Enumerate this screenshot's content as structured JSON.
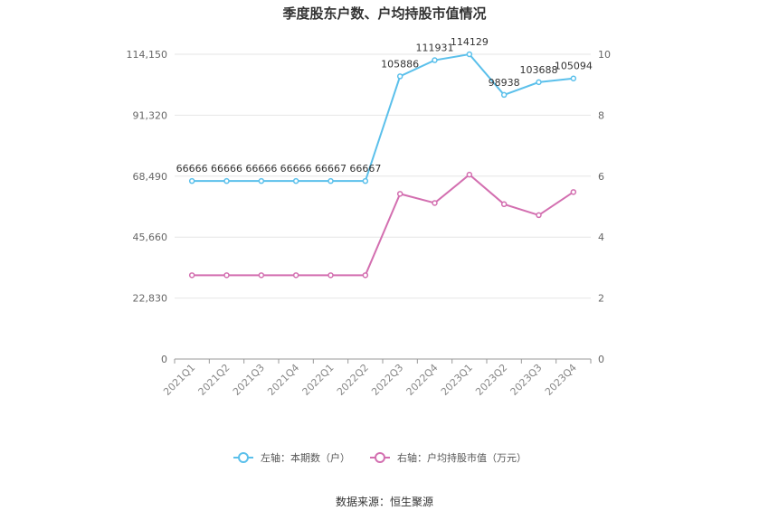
{
  "chart_data": {
    "type": "line",
    "title": "季度股东户数、户均持股市值情况",
    "categories": [
      "2021Q1",
      "2021Q2",
      "2021Q3",
      "2021Q4",
      "2022Q1",
      "2022Q2",
      "2022Q3",
      "2022Q4",
      "2023Q1",
      "2023Q2",
      "2023Q3",
      "2023Q4"
    ],
    "left_axis": {
      "ticks": [
        0,
        22830,
        45660,
        68490,
        91320,
        114150
      ],
      "tick_labels": [
        "0",
        "22,830",
        "45,660",
        "68,490",
        "91,320",
        "114,150"
      ],
      "ylim": [
        0,
        114150
      ]
    },
    "right_axis": {
      "ticks": [
        0,
        2,
        4,
        6,
        8,
        10
      ],
      "tick_labels": [
        "0",
        "2",
        "4",
        "6",
        "8",
        "10"
      ],
      "ylim": [
        0,
        10
      ]
    },
    "series": [
      {
        "name": "左轴：本期数（户）",
        "axis": "left",
        "color": "#5bc0eb",
        "values": [
          66666,
          66666,
          66666,
          66666,
          66667,
          66667,
          105886,
          111931,
          114129,
          98938,
          103688,
          105094
        ],
        "labels": [
          "66666",
          "66666",
          "66666",
          "66666",
          "66667",
          "66667",
          "105886",
          "111931",
          "114129",
          "98938",
          "103688",
          "105094"
        ]
      },
      {
        "name": "右轴：户均持股市值（万元）",
        "axis": "right",
        "color": "#d36fb0",
        "values": [
          2.75,
          2.75,
          2.75,
          2.75,
          2.75,
          2.75,
          5.42,
          5.12,
          6.05,
          5.08,
          4.72,
          5.48
        ]
      }
    ],
    "grid": true,
    "legend_position": "bottom"
  },
  "source_text": "数据来源：恒生聚源"
}
